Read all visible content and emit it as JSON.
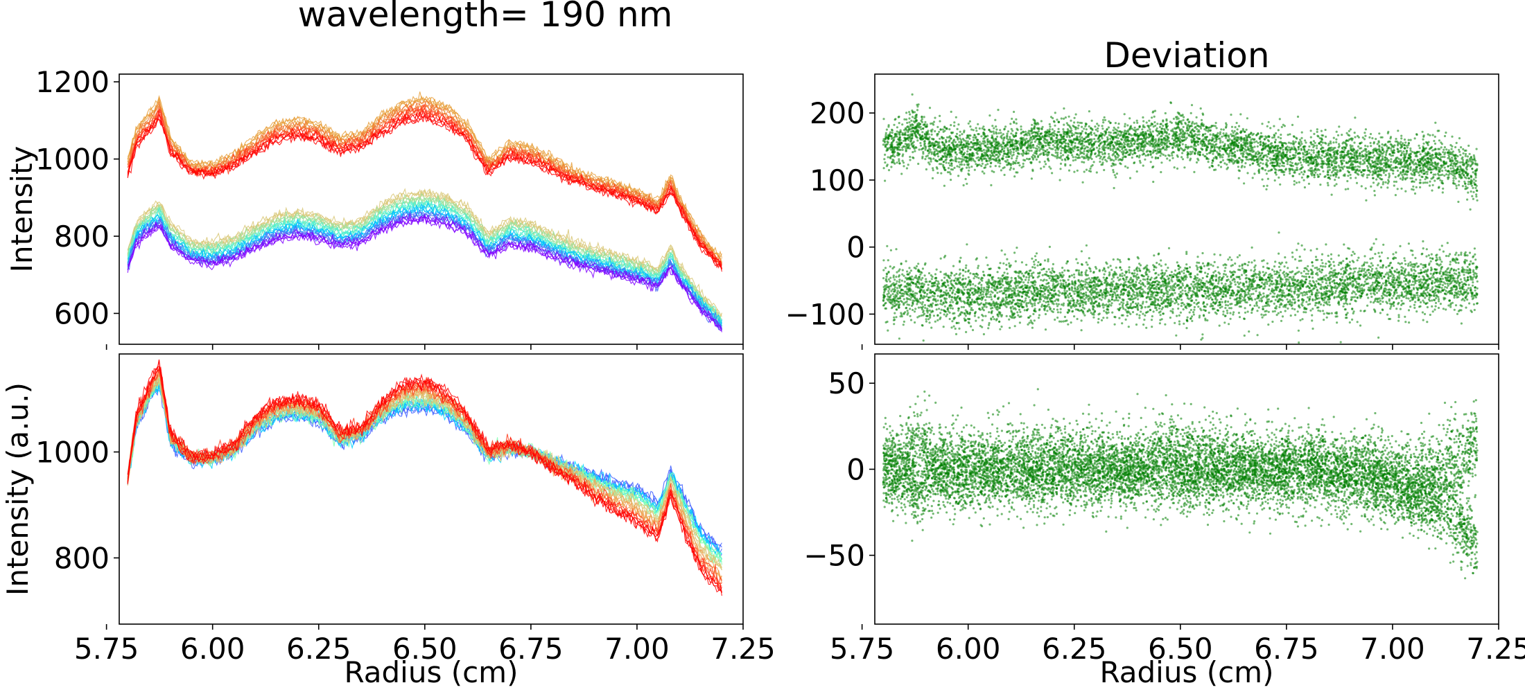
{
  "figure": {
    "suptitle": "wavelength= 190 nm"
  },
  "colors": {
    "scatter": "#008000",
    "lines_top_upper": [
      "#e8a03c",
      "#f07830",
      "#ff4020",
      "#ff0000"
    ],
    "lines_top_lower": [
      "#7f00ff",
      "#4a6cf5",
      "#00bfff",
      "#4cf0d0",
      "#9be09b",
      "#d9c878"
    ],
    "lines_bottom": [
      "#3b5bff",
      "#00d4ff",
      "#7fffb0",
      "#d9c878",
      "#f0a050",
      "#ff4020",
      "#ff0000"
    ]
  },
  "chart_data": [
    {
      "id": "top-left",
      "type": "line",
      "title": "",
      "xlabel": "",
      "ylabel": "Intensity",
      "xlim": [
        5.78,
        7.25
      ],
      "ylim": [
        520,
        1220
      ],
      "xticks": [
        5.75,
        6.0,
        6.25,
        6.5,
        6.75,
        7.0,
        7.25
      ],
      "show_xticklabels": false,
      "yticks": [
        600,
        800,
        1000,
        1200
      ],
      "yticklabels": [
        "600",
        "800",
        "1000",
        "1200"
      ],
      "grid": false,
      "x": [
        5.8,
        5.82,
        5.845,
        5.86,
        5.875,
        5.9,
        5.95,
        6.0,
        6.05,
        6.1,
        6.15,
        6.2,
        6.25,
        6.3,
        6.35,
        6.4,
        6.45,
        6.5,
        6.55,
        6.6,
        6.65,
        6.7,
        6.75,
        6.8,
        6.85,
        6.9,
        6.95,
        7.0,
        7.05,
        7.08,
        7.1,
        7.15,
        7.2
      ],
      "series": [
        {
          "values": [
            1000,
            1075,
            1110,
            1125,
            1155,
            1055,
            985,
            985,
            1010,
            1055,
            1090,
            1100,
            1090,
            1055,
            1065,
            1110,
            1145,
            1155,
            1135,
            1090,
            995,
            1040,
            1030,
            1000,
            970,
            950,
            935,
            915,
            890,
            955,
            900,
            800,
            740
          ]
        },
        {
          "values": [
            985,
            1060,
            1095,
            1110,
            1140,
            1040,
            975,
            975,
            998,
            1040,
            1075,
            1085,
            1075,
            1042,
            1052,
            1095,
            1130,
            1140,
            1120,
            1075,
            982,
            1025,
            1015,
            988,
            960,
            940,
            925,
            905,
            880,
            940,
            890,
            790,
            730
          ]
        },
        {
          "values": [
            970,
            1045,
            1080,
            1095,
            1125,
            1030,
            970,
            968,
            990,
            1030,
            1062,
            1072,
            1062,
            1032,
            1042,
            1082,
            1115,
            1125,
            1105,
            1062,
            972,
            1015,
            1005,
            978,
            952,
            932,
            917,
            897,
            873,
            930,
            882,
            782,
            725
          ]
        },
        {
          "values": [
            960,
            1035,
            1068,
            1082,
            1110,
            1020,
            965,
            962,
            982,
            1020,
            1050,
            1060,
            1050,
            1022,
            1032,
            1070,
            1100,
            1110,
            1092,
            1050,
            965,
            1005,
            995,
            970,
            945,
            925,
            910,
            890,
            866,
            920,
            875,
            775,
            720
          ]
        },
        {
          "values": [
            760,
            830,
            860,
            872,
            885,
            830,
            785,
            780,
            795,
            825,
            850,
            860,
            850,
            830,
            840,
            880,
            905,
            910,
            900,
            870,
            805,
            840,
            830,
            805,
            780,
            765,
            750,
            735,
            715,
            770,
            725,
            650,
            590
          ]
        },
        {
          "values": [
            750,
            820,
            848,
            860,
            872,
            818,
            773,
            768,
            782,
            812,
            838,
            848,
            838,
            818,
            828,
            866,
            890,
            895,
            886,
            856,
            792,
            826,
            816,
            792,
            768,
            753,
            738,
            723,
            704,
            758,
            714,
            640,
            582
          ]
        },
        {
          "values": [
            740,
            810,
            836,
            848,
            860,
            806,
            762,
            757,
            770,
            800,
            826,
            836,
            826,
            806,
            816,
            852,
            876,
            881,
            872,
            843,
            780,
            813,
            804,
            780,
            757,
            742,
            727,
            713,
            694,
            747,
            704,
            632,
            575
          ]
        },
        {
          "values": [
            730,
            800,
            825,
            836,
            848,
            795,
            752,
            746,
            759,
            788,
            814,
            824,
            814,
            795,
            805,
            840,
            863,
            868,
            859,
            830,
            769,
            801,
            792,
            769,
            746,
            732,
            717,
            703,
            684,
            737,
            695,
            625,
            569
          ]
        },
        {
          "values": [
            722,
            790,
            815,
            826,
            838,
            786,
            744,
            737,
            750,
            778,
            803,
            813,
            803,
            785,
            795,
            829,
            851,
            856,
            847,
            819,
            760,
            790,
            781,
            759,
            737,
            723,
            709,
            695,
            676,
            728,
            688,
            618,
            564
          ]
        },
        {
          "values": [
            715,
            782,
            806,
            817,
            828,
            778,
            737,
            729,
            742,
            769,
            793,
            803,
            793,
            776,
            786,
            818,
            840,
            845,
            836,
            809,
            752,
            780,
            771,
            750,
            729,
            716,
            702,
            688,
            670,
            720,
            681,
            612,
            560
          ]
        }
      ]
    },
    {
      "id": "top-right",
      "type": "scatter",
      "title": "Deviation",
      "xlabel": "",
      "ylabel": "",
      "xlim": [
        5.78,
        7.25
      ],
      "ylim": [
        -145,
        258
      ],
      "xticks": [
        5.75,
        6.0,
        6.25,
        6.5,
        6.75,
        7.0,
        7.25
      ],
      "show_xticklabels": false,
      "yticks": [
        -100,
        0,
        100,
        200
      ],
      "yticklabels": [
        "−100",
        "0",
        "100",
        "200"
      ],
      "grid": false,
      "x": [
        5.8,
        5.85,
        5.88,
        5.92,
        6.0,
        6.1,
        6.2,
        6.3,
        6.4,
        6.5,
        6.6,
        6.7,
        6.8,
        6.9,
        7.0,
        7.05,
        7.1,
        7.15,
        7.2
      ],
      "series": [
        {
          "center": [
            150,
            160,
            175,
            150,
            145,
            150,
            160,
            150,
            158,
            165,
            152,
            140,
            135,
            132,
            128,
            125,
            130,
            118,
            105
          ],
          "spread": 18
        },
        {
          "center": [
            -65,
            -70,
            -68,
            -70,
            -70,
            -68,
            -67,
            -68,
            -66,
            -66,
            -64,
            -62,
            -60,
            -58,
            -56,
            -55,
            -54,
            -52,
            -50
          ],
          "spread": 22
        }
      ]
    },
    {
      "id": "bottom-left",
      "type": "line",
      "title": "",
      "xlabel": "Radius (cm)",
      "ylabel": "Intensity (a.u.)",
      "xlim": [
        5.78,
        7.25
      ],
      "ylim": [
        675,
        1185
      ],
      "xticks": [
        5.75,
        6.0,
        6.25,
        6.5,
        6.75,
        7.0,
        7.25
      ],
      "xticklabels": [
        "5.75",
        "6.00",
        "6.25",
        "6.50",
        "6.75",
        "7.00",
        "7.25"
      ],
      "show_xticklabels": true,
      "yticks": [
        800,
        1000
      ],
      "yticklabels": [
        "800",
        "1000"
      ],
      "grid": false,
      "x": [
        5.8,
        5.82,
        5.845,
        5.86,
        5.875,
        5.9,
        5.95,
        6.0,
        6.05,
        6.1,
        6.15,
        6.2,
        6.25,
        6.3,
        6.35,
        6.4,
        6.45,
        6.5,
        6.55,
        6.6,
        6.65,
        6.7,
        6.75,
        6.8,
        6.85,
        6.9,
        6.95,
        7.0,
        7.05,
        7.08,
        7.1,
        7.15,
        7.2
      ],
      "series": [
        {
          "values": [
            950,
            1050,
            1090,
            1110,
            1125,
            1020,
            985,
            985,
            1000,
            1040,
            1065,
            1070,
            1060,
            1020,
            1030,
            1065,
            1085,
            1085,
            1075,
            1040,
            990,
            1005,
            1000,
            985,
            970,
            955,
            940,
            930,
            900,
            965,
            930,
            850,
            815
          ]
        },
        {
          "values": [
            950,
            1052,
            1093,
            1113,
            1130,
            1022,
            986,
            986,
            1002,
            1043,
            1068,
            1073,
            1063,
            1022,
            1032,
            1068,
            1090,
            1090,
            1079,
            1043,
            992,
            1006,
            1000,
            984,
            967,
            950,
            934,
            922,
            892,
            960,
            925,
            842,
            805
          ]
        },
        {
          "values": [
            950,
            1055,
            1096,
            1117,
            1136,
            1024,
            987,
            987,
            1004,
            1046,
            1072,
            1077,
            1067,
            1024,
            1034,
            1072,
            1096,
            1097,
            1084,
            1047,
            994,
            1007,
            1000,
            982,
            964,
            945,
            927,
            914,
            884,
            954,
            918,
            833,
            795
          ]
        },
        {
          "values": [
            950,
            1058,
            1100,
            1122,
            1143,
            1027,
            988,
            988,
            1006,
            1050,
            1077,
            1082,
            1072,
            1027,
            1037,
            1077,
            1103,
            1105,
            1090,
            1052,
            996,
            1009,
            1000,
            980,
            960,
            938,
            918,
            903,
            873,
            946,
            908,
            820,
            782
          ]
        },
        {
          "values": [
            950,
            1062,
            1105,
            1128,
            1151,
            1030,
            990,
            990,
            1009,
            1055,
            1083,
            1088,
            1078,
            1030,
            1040,
            1083,
            1112,
            1115,
            1097,
            1058,
            999,
            1011,
            1000,
            977,
            955,
            930,
            907,
            890,
            860,
            936,
            895,
            805,
            765
          ]
        },
        {
          "values": [
            950,
            1066,
            1110,
            1134,
            1158,
            1033,
            991,
            991,
            1012,
            1060,
            1089,
            1094,
            1084,
            1033,
            1043,
            1089,
            1120,
            1124,
            1104,
            1064,
            1002,
            1013,
            1000,
            974,
            950,
            922,
            897,
            878,
            848,
            927,
            882,
            790,
            748
          ]
        },
        {
          "values": [
            950,
            1070,
            1115,
            1140,
            1165,
            1036,
            992,
            992,
            1015,
            1064,
            1094,
            1100,
            1090,
            1036,
            1046,
            1095,
            1128,
            1132,
            1111,
            1070,
            1005,
            1015,
            1000,
            970,
            945,
            915,
            888,
            868,
            838,
            920,
            872,
            778,
            735
          ]
        }
      ]
    },
    {
      "id": "bottom-right",
      "type": "scatter",
      "title": "",
      "xlabel": "Radius (cm)",
      "ylabel": "",
      "xlim": [
        5.78,
        7.25
      ],
      "ylim": [
        -90,
        67
      ],
      "xticks": [
        5.75,
        6.0,
        6.25,
        6.5,
        6.75,
        7.0,
        7.25
      ],
      "xticklabels": [
        "5.75",
        "6.00",
        "6.25",
        "6.50",
        "6.75",
        "7.00",
        "7.25"
      ],
      "show_xticklabels": true,
      "yticks": [
        -50,
        0,
        50
      ],
      "yticklabels": [
        "−50",
        "0",
        "50"
      ],
      "grid": false,
      "x": [
        5.8,
        5.85,
        5.88,
        5.92,
        6.0,
        6.1,
        6.2,
        6.3,
        6.4,
        6.5,
        6.6,
        6.7,
        6.8,
        6.9,
        7.0,
        7.05,
        7.1,
        7.15,
        7.2
      ],
      "series": [
        {
          "center": [
            0,
            5,
            15,
            0,
            -2,
            2,
            5,
            0,
            3,
            8,
            2,
            0,
            -3,
            -5,
            -5,
            -8,
            -5,
            5,
            15
          ],
          "spread": 12
        },
        {
          "center": [
            0,
            -5,
            -15,
            0,
            0,
            -2,
            -4,
            0,
            -3,
            -6,
            -2,
            0,
            2,
            0,
            -10,
            -15,
            -20,
            -30,
            -45
          ],
          "spread": 10
        }
      ]
    }
  ]
}
